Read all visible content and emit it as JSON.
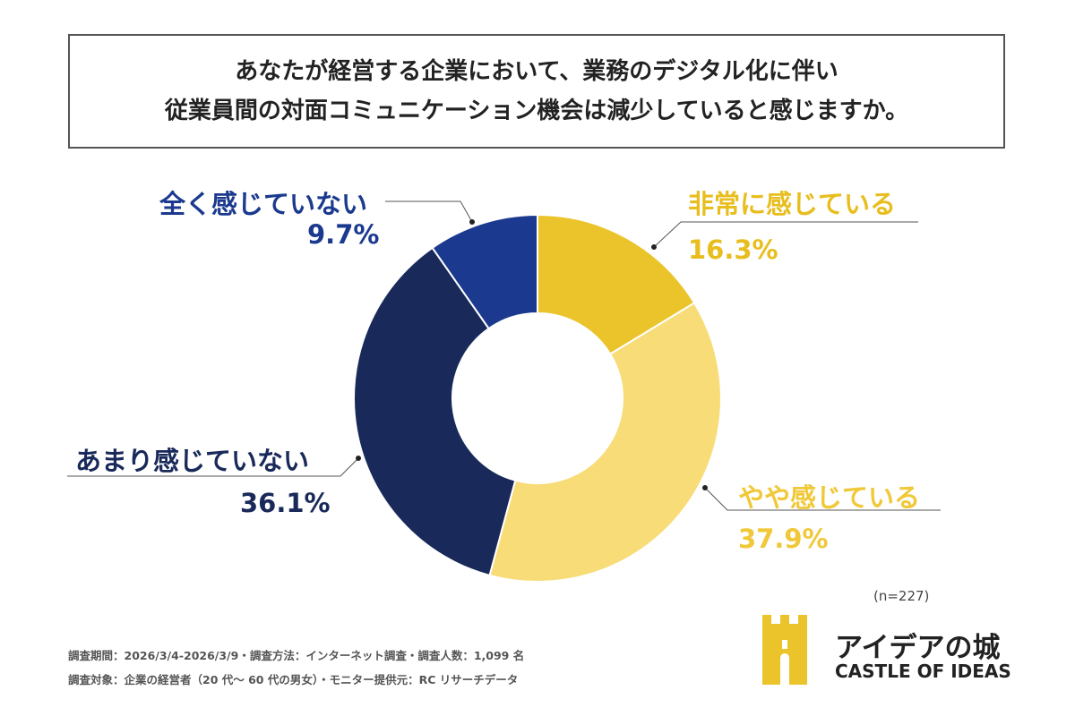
{
  "title": {
    "line1": "あなたが経営する企業において、業務のデジタル化に伴い",
    "line2": "従業員間の対面コミュニケーション機会は減少していると感じますか。"
  },
  "chart_data": {
    "type": "pie",
    "donut": true,
    "categories": [
      "非常に感じている",
      "やや感じている",
      "あまり感じていない",
      "全く感じていない"
    ],
    "values": [
      16.3,
      37.9,
      36.1,
      9.7
    ],
    "labels": [
      "16.3%",
      "37.9%",
      "36.1%",
      "9.7%"
    ],
    "colors": [
      "#EBC42B",
      "#F7DC78",
      "#18295A",
      "#1B3A8F"
    ],
    "label_colors": [
      "#E8BE1E",
      "#F0C838",
      "#18295A",
      "#1B3A8F"
    ],
    "start": "top",
    "direction": "clockwise",
    "sample_size": "(n=227)"
  },
  "footer": {
    "note1": "調査期間：2026/3/4-2026/3/9・調査方法：インターネット調査・調査人数：1,099 名",
    "note2": "調査対象：企業の経営者（20 代～ 60 代の男女）・モニター提供元：RC リサーチデータ"
  },
  "logo": {
    "jp": "アイデアの城",
    "en": "CASTLE OF IDEAS",
    "color": "#EBC42B"
  }
}
